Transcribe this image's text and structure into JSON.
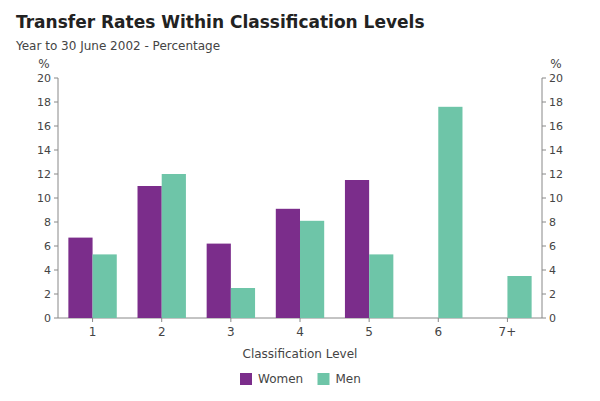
{
  "chart_data": {
    "type": "bar",
    "title": "Transfer Rates Within Classification Levels",
    "subtitle": "Year to 30 June 2002 - Percentage",
    "xlabel": "Classification Level",
    "ylabel": "%",
    "y2label": "%",
    "categories": [
      "1",
      "2",
      "3",
      "4",
      "5",
      "6",
      "7+"
    ],
    "series": [
      {
        "name": "Women",
        "color": "#7B2D8B",
        "values": [
          6.7,
          11.0,
          6.2,
          9.1,
          11.5,
          0,
          0
        ]
      },
      {
        "name": "Men",
        "color": "#6EC5A8",
        "values": [
          5.3,
          12.0,
          2.5,
          8.1,
          5.3,
          17.6,
          3.5
        ]
      }
    ],
    "ylim": [
      0,
      20
    ],
    "yticks": [
      0,
      2,
      4,
      6,
      8,
      10,
      12,
      14,
      16,
      18,
      20
    ],
    "y2lim": [
      0,
      20
    ],
    "y2ticks": [
      0,
      2,
      4,
      6,
      8,
      10,
      12,
      14,
      16,
      18,
      20
    ],
    "grid": false,
    "legend": "bottom"
  }
}
